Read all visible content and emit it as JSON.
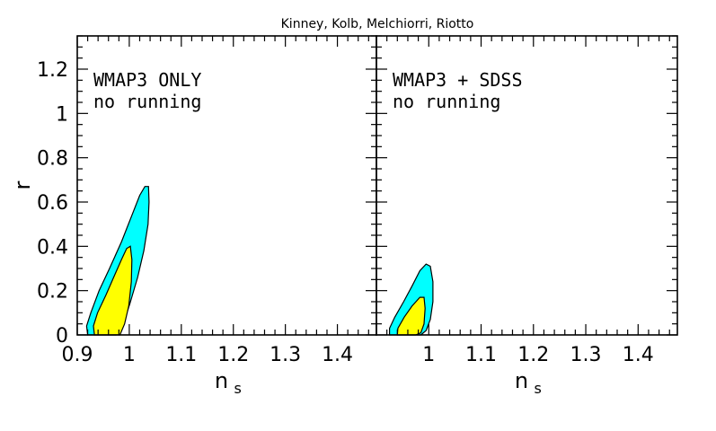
{
  "figure": {
    "title": "Kinney, Kolb, Melchiorri, Riotto"
  },
  "colors": {
    "outer_region": "#00ffff",
    "inner_region": "#ffff00",
    "stroke": "#000000"
  },
  "chart_data": [
    {
      "type": "contour",
      "panel": "left",
      "annotation_lines": [
        "WMAP3 ONLY",
        "no running"
      ],
      "xlabel": "n",
      "xlabel_sub": "s",
      "ylabel": "r",
      "xlim": [
        0.9,
        1.475
      ],
      "ylim": [
        0,
        1.35
      ],
      "xticks": [
        0.9,
        1,
        1.1,
        1.2,
        1.3,
        1.4
      ],
      "xtick_labels": [
        "0.9",
        "1",
        "1.1",
        "1.2",
        "1.3",
        "1.4"
      ],
      "yticks": [
        0,
        0.2,
        0.4,
        0.6,
        0.8,
        1,
        1.2
      ],
      "ytick_labels": [
        "0",
        "0.2",
        "0.4",
        "0.6",
        "0.8",
        "1",
        "1.2"
      ],
      "regions": [
        {
          "level": "outer",
          "points": [
            [
              0.92,
              0
            ],
            [
              0.918,
              0.04
            ],
            [
              0.926,
              0.1
            ],
            [
              0.942,
              0.2
            ],
            [
              0.962,
              0.3
            ],
            [
              0.985,
              0.42
            ],
            [
              1.005,
              0.54
            ],
            [
              1.02,
              0.63
            ],
            [
              1.03,
              0.67
            ],
            [
              1.037,
              0.67
            ],
            [
              1.038,
              0.6
            ],
            [
              1.036,
              0.5
            ],
            [
              1.028,
              0.38
            ],
            [
              1.016,
              0.26
            ],
            [
              1.001,
              0.14
            ],
            [
              0.988,
              0.05
            ],
            [
              0.975,
              0
            ]
          ]
        },
        {
          "level": "inner",
          "points": [
            [
              0.933,
              0
            ],
            [
              0.931,
              0.04
            ],
            [
              0.939,
              0.1
            ],
            [
              0.955,
              0.18
            ],
            [
              0.97,
              0.26
            ],
            [
              0.985,
              0.34
            ],
            [
              0.995,
              0.39
            ],
            [
              1.002,
              0.4
            ],
            [
              1.005,
              0.34
            ],
            [
              1.004,
              0.24
            ],
            [
              0.999,
              0.13
            ],
            [
              0.991,
              0.05
            ],
            [
              0.982,
              0
            ]
          ]
        }
      ]
    },
    {
      "type": "contour",
      "panel": "right",
      "annotation_lines": [
        "WMAP3 + SDSS",
        "no running"
      ],
      "xlabel": "n",
      "xlabel_sub": "s",
      "ylabel": "",
      "xlim": [
        0.9,
        1.475
      ],
      "ylim": [
        0,
        1.35
      ],
      "xticks": [
        1,
        1.1,
        1.2,
        1.3,
        1.4
      ],
      "xtick_labels": [
        "1",
        "1.1",
        "1.2",
        "1.3",
        "1.4"
      ],
      "yticks": [
        0,
        0.2,
        0.4,
        0.6,
        0.8,
        1,
        1.2
      ],
      "ytick_labels": [],
      "regions": [
        {
          "level": "outer",
          "points": [
            [
              0.925,
              0
            ],
            [
              0.925,
              0.03
            ],
            [
              0.935,
              0.08
            ],
            [
              0.952,
              0.15
            ],
            [
              0.968,
              0.22
            ],
            [
              0.983,
              0.29
            ],
            [
              0.995,
              0.32
            ],
            [
              1.003,
              0.31
            ],
            [
              1.008,
              0.24
            ],
            [
              1.008,
              0.15
            ],
            [
              1.003,
              0.07
            ],
            [
              0.995,
              0.02
            ],
            [
              0.985,
              0
            ]
          ]
        },
        {
          "level": "inner",
          "points": [
            [
              0.94,
              0
            ],
            [
              0.941,
              0.03
            ],
            [
              0.953,
              0.08
            ],
            [
              0.968,
              0.13
            ],
            [
              0.983,
              0.17
            ],
            [
              0.991,
              0.17
            ],
            [
              0.993,
              0.12
            ],
            [
              0.991,
              0.05
            ],
            [
              0.985,
              0.01
            ],
            [
              0.975,
              0
            ]
          ]
        }
      ]
    }
  ]
}
